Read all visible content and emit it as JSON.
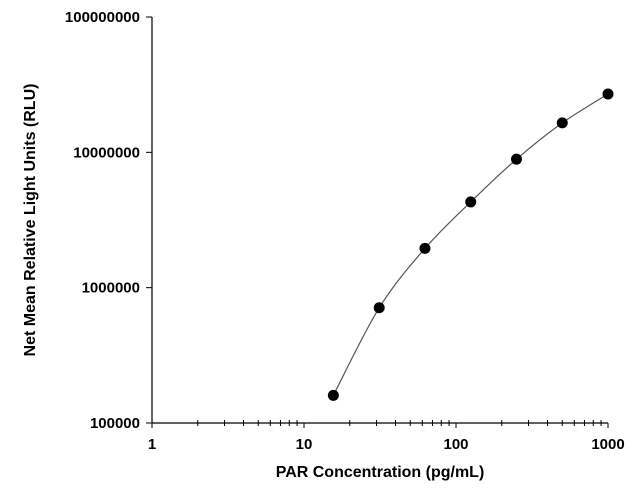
{
  "chart_data": {
    "type": "scatter",
    "title": "",
    "xlabel": "PAR Concentration (pg/mL)",
    "ylabel": "Net Mean Relative Light Units (RLU)",
    "xscale": "log",
    "yscale": "log",
    "xlim": [
      1,
      1000
    ],
    "ylim": [
      100000,
      100000000
    ],
    "x_ticks": [
      1,
      10,
      100,
      1000
    ],
    "x_tick_labels": [
      "1",
      "10",
      "100",
      "1000"
    ],
    "y_ticks": [
      100000,
      1000000,
      10000000,
      100000000
    ],
    "y_tick_labels": [
      "100000",
      "1000000",
      "10000000",
      "100000000"
    ],
    "grid": false,
    "legend": "none",
    "fit_line": true,
    "series": [
      {
        "x": [
          15.6,
          31.25,
          62.5,
          125,
          250,
          500,
          1000
        ],
        "y": [
          160000,
          710000,
          1950000,
          4300000,
          8900000,
          16500000,
          27000000
        ]
      }
    ],
    "colors": {
      "points": "#000000",
      "fit_line": "#555555",
      "axes": "#000000"
    }
  }
}
